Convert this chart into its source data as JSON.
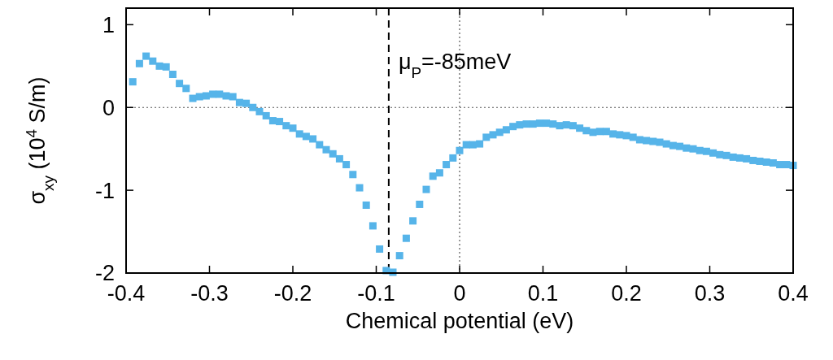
{
  "chart_data": {
    "type": "scatter",
    "xlabel": "Chemical potential (eV)",
    "ylabel": "σ$_{xy}$ (10$^{4}$ S/m)",
    "xlim": [
      -0.4,
      0.4
    ],
    "xticks": [
      -0.4,
      -0.3,
      -0.2,
      -0.1,
      0,
      0.1,
      0.2,
      0.3,
      0.4
    ],
    "ylim": [
      -2,
      1.2
    ],
    "yticks": [
      -2,
      -1,
      0,
      1
    ],
    "marker": "square",
    "grid": false,
    "ref_lines": [
      {
        "axis": "x",
        "value": -0.085,
        "label": "μ$_{P}$=-85meV",
        "color": "#000000",
        "line_style": "dashed"
      },
      {
        "axis": "y",
        "value": 0,
        "color": "#555555",
        "line_style": "dotted"
      },
      {
        "axis": "x",
        "value": 0,
        "color": "#555555",
        "line_style": "dotted"
      }
    ],
    "series": [
      {
        "color": "#56b4e9",
        "x": [
          -0.392,
          -0.384,
          -0.376,
          -0.368,
          -0.36,
          -0.352,
          -0.344,
          -0.336,
          -0.328,
          -0.32,
          -0.312,
          -0.304,
          -0.296,
          -0.288,
          -0.28,
          -0.272,
          -0.264,
          -0.256,
          -0.248,
          -0.24,
          -0.232,
          -0.224,
          -0.216,
          -0.208,
          -0.2,
          -0.192,
          -0.184,
          -0.176,
          -0.168,
          -0.16,
          -0.152,
          -0.144,
          -0.136,
          -0.128,
          -0.12,
          -0.112,
          -0.104,
          -0.096,
          -0.088,
          -0.08,
          -0.072,
          -0.064,
          -0.056,
          -0.048,
          -0.04,
          -0.032,
          -0.024,
          -0.016,
          -0.008,
          0,
          0.008,
          0.016,
          0.024,
          0.032,
          0.04,
          0.048,
          0.056,
          0.064,
          0.072,
          0.08,
          0.088,
          0.096,
          0.104,
          0.112,
          0.12,
          0.128,
          0.136,
          0.144,
          0.152,
          0.16,
          0.168,
          0.176,
          0.184,
          0.192,
          0.2,
          0.208,
          0.216,
          0.224,
          0.232,
          0.24,
          0.248,
          0.256,
          0.264,
          0.272,
          0.28,
          0.288,
          0.296,
          0.304,
          0.312,
          0.32,
          0.328,
          0.336,
          0.344,
          0.352,
          0.36,
          0.368,
          0.376,
          0.384,
          0.392,
          0.4
        ],
        "values": [
          0.31,
          0.53,
          0.62,
          0.56,
          0.5,
          0.49,
          0.4,
          0.29,
          0.23,
          0.11,
          0.13,
          0.14,
          0.16,
          0.16,
          0.14,
          0.13,
          0.06,
          0.05,
          0,
          -0.05,
          -0.1,
          -0.16,
          -0.17,
          -0.22,
          -0.25,
          -0.32,
          -0.35,
          -0.38,
          -0.45,
          -0.51,
          -0.56,
          -0.62,
          -0.69,
          -0.81,
          -0.97,
          -1.18,
          -1.43,
          -1.71,
          -1.97,
          -1.99,
          -1.79,
          -1.58,
          -1.37,
          -1.17,
          -0.99,
          -0.83,
          -0.79,
          -0.69,
          -0.61,
          -0.52,
          -0.45,
          -0.45,
          -0.44,
          -0.36,
          -0.33,
          -0.3,
          -0.27,
          -0.23,
          -0.21,
          -0.2,
          -0.2,
          -0.19,
          -0.19,
          -0.2,
          -0.22,
          -0.21,
          -0.22,
          -0.25,
          -0.28,
          -0.3,
          -0.29,
          -0.29,
          -0.32,
          -0.33,
          -0.34,
          -0.36,
          -0.39,
          -0.4,
          -0.41,
          -0.42,
          -0.44,
          -0.46,
          -0.47,
          -0.49,
          -0.5,
          -0.52,
          -0.53,
          -0.55,
          -0.57,
          -0.58,
          -0.6,
          -0.61,
          -0.62,
          -0.64,
          -0.65,
          -0.66,
          -0.67,
          -0.69,
          -0.69,
          -0.7
        ]
      }
    ]
  }
}
